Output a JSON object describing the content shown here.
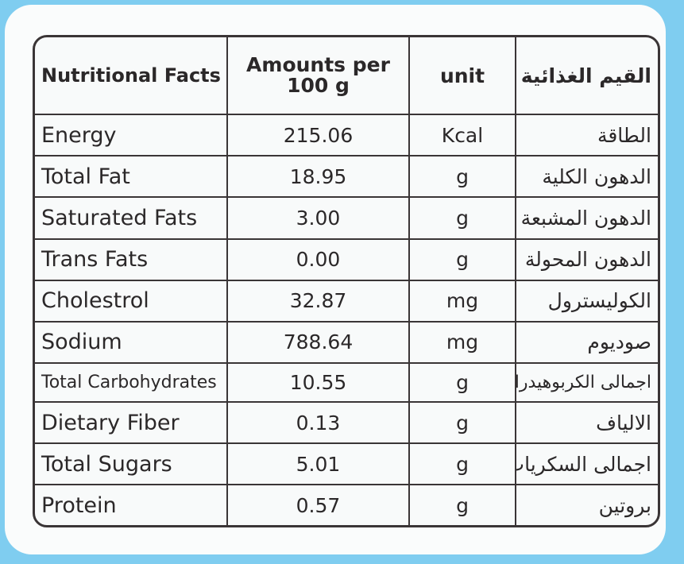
{
  "table": {
    "headers": {
      "nutrient": "Nutritional Facts",
      "amount_line1": "Amounts per",
      "amount_line2": "100 g",
      "unit": "unit",
      "arabic": "القيم الغذائية"
    },
    "rows": [
      {
        "nutrient": "Energy",
        "amount": "215.06",
        "unit": "Kcal",
        "arabic": "الطاقة"
      },
      {
        "nutrient": "Total Fat",
        "amount": "18.95",
        "unit": "g",
        "arabic": "الدهون الكلية"
      },
      {
        "nutrient": "Saturated Fats",
        "amount": "3.00",
        "unit": "g",
        "arabic": "الدهون المشبعة"
      },
      {
        "nutrient": "Trans Fats",
        "amount": "0.00",
        "unit": "g",
        "arabic": "الدهون المحولة"
      },
      {
        "nutrient": "Cholestrol",
        "amount": "32.87",
        "unit": "mg",
        "arabic": "الكوليسترول"
      },
      {
        "nutrient": "Sodium",
        "amount": "788.64",
        "unit": "mg",
        "arabic": "صوديوم"
      },
      {
        "nutrient": "Total Carbohydrates",
        "amount": "10.55",
        "unit": "g",
        "arabic": "اجمالى الكربوهيدرات"
      },
      {
        "nutrient": "Dietary Fiber",
        "amount": "0.13",
        "unit": "g",
        "arabic": "الالياف"
      },
      {
        "nutrient": "Total Sugars",
        "amount": "5.01",
        "unit": "g",
        "arabic": "اجمالى السكريات"
      },
      {
        "nutrient": "Protein",
        "amount": "0.57",
        "unit": "g",
        "arabic": "بروتين"
      }
    ]
  },
  "colors": {
    "background": "#7fcdf0",
    "label": "#fafcfc",
    "ink": "#3a3536"
  }
}
